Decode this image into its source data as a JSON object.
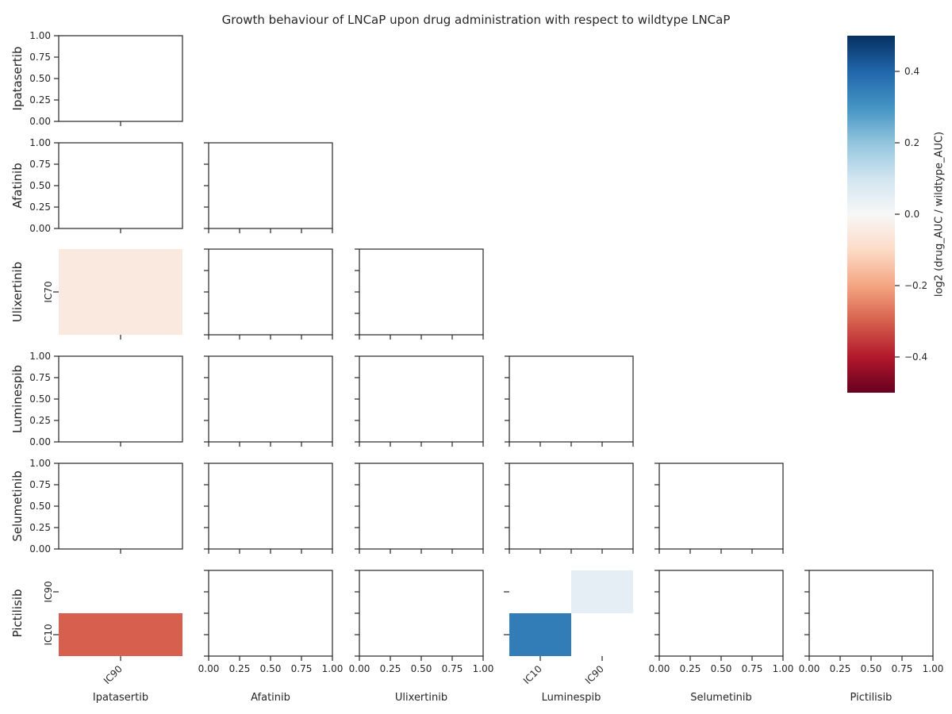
{
  "chart_data": {
    "type": "heatmap",
    "title": "Growth behaviour of LNCaP upon drug administration with respect to wildtype LNCaP",
    "drugs": [
      "Ipatasertib",
      "Afatinib",
      "Ulixertinib",
      "Luminespib",
      "Selumetinib",
      "Pictilisib"
    ],
    "empty_axis_ticks": [
      "0.00",
      "0.25",
      "0.50",
      "0.75",
      "1.00"
    ],
    "colorbar": {
      "label": "log2 (drug_AUC / wildtype_AUC)",
      "range": [
        -0.5,
        0.5
      ],
      "ticks": [
        "−0.4",
        "−0.2",
        "0.0",
        "0.2",
        "0.4"
      ],
      "tick_values": [
        -0.4,
        -0.2,
        0.0,
        0.2,
        0.4
      ],
      "colormap": "RdBu"
    },
    "panels": [
      {
        "row": "Ulixertinib",
        "col": "Ipatasertib",
        "row_categories": [
          "IC70"
        ],
        "col_categories": [
          "IC90"
        ],
        "values": [
          [
            -0.05
          ]
        ]
      },
      {
        "row": "Pictilisib",
        "col": "Ipatasertib",
        "row_categories": [
          "IC90",
          "IC10"
        ],
        "col_categories": [
          "IC90"
        ],
        "values": [
          [
            null
          ],
          [
            -0.3
          ]
        ]
      },
      {
        "row": "Pictilisib",
        "col": "Luminespib",
        "row_categories": [
          "IC90",
          "IC10"
        ],
        "col_categories": [
          "IC10",
          "IC90"
        ],
        "values": [
          [
            null,
            0.05
          ],
          [
            0.35,
            null
          ]
        ]
      }
    ]
  }
}
